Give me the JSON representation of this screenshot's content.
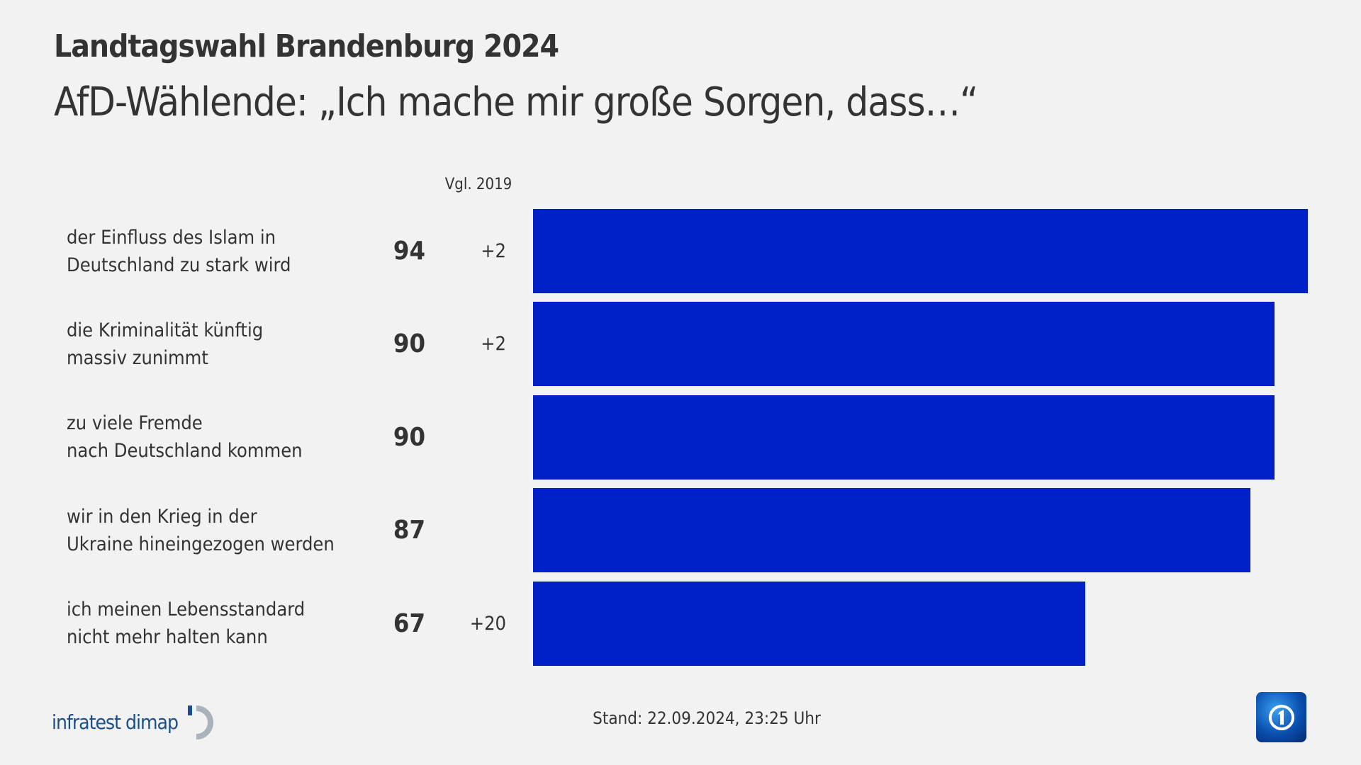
{
  "header": {
    "title": "Landtagswahl Brandenburg 2024",
    "subtitle": "AfD-Wählende: „Ich mache mir große Sorgen, dass…“"
  },
  "chart_data": {
    "type": "bar",
    "orientation": "horizontal",
    "comparison_header": "Vgl. 2019",
    "bar_color": "#0020c8",
    "categories": [
      [
        "der Einfluss des Islam in",
        "Deutschland zu stark wird"
      ],
      [
        "die Kriminalität künftig",
        "massiv zunimmt"
      ],
      [
        "zu viele Fremde",
        "nach Deutschland kommen"
      ],
      [
        "wir in den Krieg in der",
        "Ukraine hineingezogen werden"
      ],
      [
        "ich meinen Lebensstandard",
        "nicht mehr halten kann"
      ]
    ],
    "values": [
      94,
      90,
      90,
      87,
      67
    ],
    "value_labels": [
      "94",
      "90",
      "90",
      "87",
      "67"
    ],
    "change_vs_2019": [
      "+2",
      "+2",
      "",
      "",
      "+20"
    ],
    "grid": false
  },
  "footer": {
    "source_logo": "infratest dimap",
    "stand": "Stand:  22.09.2024, 23:25 Uhr",
    "broadcaster_logo": "ARD Das Erste"
  }
}
